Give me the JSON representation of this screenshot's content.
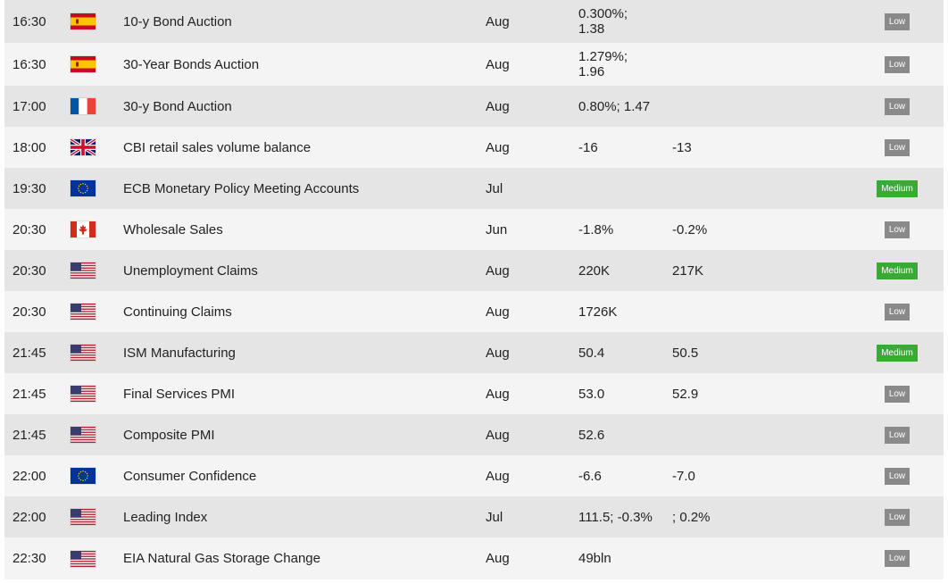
{
  "colors": {
    "row_odd": "#e5e5e5",
    "row_even": "#f4f4f4",
    "badge_low": "#8a8a8a",
    "badge_medium": "#3aaa35"
  },
  "events": [
    {
      "time": "16:30",
      "flag": "spain-flag-icon",
      "event": "10-y Bond Auction",
      "period": "Aug",
      "actual": [
        "0.300%;",
        "1.38"
      ],
      "forecast": "",
      "impact": "Low"
    },
    {
      "time": "16:30",
      "flag": "spain-flag-icon",
      "event": "30-Year Bonds Auction",
      "period": "Aug",
      "actual": [
        "1.279%;",
        "1.96"
      ],
      "forecast": "",
      "impact": "Low"
    },
    {
      "time": "17:00",
      "flag": "france-flag-icon",
      "event": "30-y Bond Auction",
      "period": "Aug",
      "actual": [
        "0.80%; 1.47"
      ],
      "forecast": "",
      "impact": "Low"
    },
    {
      "time": "18:00",
      "flag": "uk-flag-icon",
      "event": "CBI retail sales volume balance",
      "period": "Aug",
      "actual": [
        "-16"
      ],
      "forecast": "-13",
      "impact": "Low"
    },
    {
      "time": "19:30",
      "flag": "eu-flag-icon",
      "event": "ECB Monetary Policy Meeting Accounts",
      "period": "Jul",
      "actual": [
        ""
      ],
      "forecast": "",
      "impact": "Medium"
    },
    {
      "time": "20:30",
      "flag": "canada-flag-icon",
      "event": "Wholesale Sales",
      "period": "Jun",
      "actual": [
        "-1.8%"
      ],
      "forecast": "-0.2%",
      "impact": "Low"
    },
    {
      "time": "20:30",
      "flag": "us-flag-icon",
      "event": "Unemployment Claims",
      "period": "Aug",
      "actual": [
        "220K"
      ],
      "forecast": "217K",
      "impact": "Medium"
    },
    {
      "time": "20:30",
      "flag": "us-flag-icon",
      "event": "Continuing Claims",
      "period": "Aug",
      "actual": [
        "1726K"
      ],
      "forecast": "",
      "impact": "Low"
    },
    {
      "time": "21:45",
      "flag": "us-flag-icon",
      "event": "ISM Manufacturing",
      "period": "Aug",
      "actual": [
        "50.4"
      ],
      "forecast": "50.5",
      "impact": "Medium"
    },
    {
      "time": "21:45",
      "flag": "us-flag-icon",
      "event": "Final Services PMI",
      "period": "Aug",
      "actual": [
        "53.0"
      ],
      "forecast": "52.9",
      "impact": "Low"
    },
    {
      "time": "21:45",
      "flag": "us-flag-icon",
      "event": "Composite PMI",
      "period": "Aug",
      "actual": [
        "52.6"
      ],
      "forecast": "",
      "impact": "Low"
    },
    {
      "time": "22:00",
      "flag": "eu-flag-icon",
      "event": "Consumer Confidence",
      "period": "Aug",
      "actual": [
        "-6.6"
      ],
      "forecast": "-7.0",
      "impact": "Low"
    },
    {
      "time": "22:00",
      "flag": "us-flag-icon",
      "event": "Leading Index",
      "period": "Jul",
      "actual": [
        "111.5; -0.3%"
      ],
      "forecast": "; 0.2%",
      "impact": "Low"
    },
    {
      "time": "22:30",
      "flag": "us-flag-icon",
      "event": "EIA Natural Gas Storage Change",
      "period": "Aug",
      "actual": [
        "49bln"
      ],
      "forecast": "",
      "impact": "Low"
    }
  ]
}
